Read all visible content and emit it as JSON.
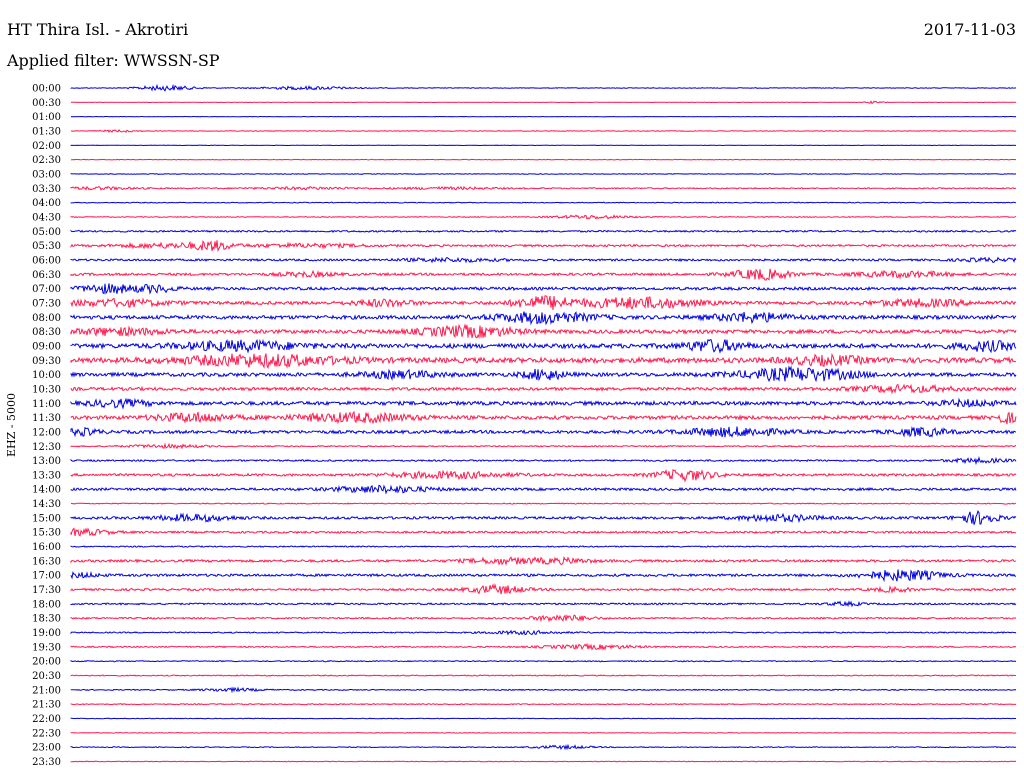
{
  "header": {
    "station": "HT Thira Isl. - Akrotiri",
    "date": "2017-11-03",
    "filter": "Applied filter: WWSSN-SP"
  },
  "chart_data": {
    "type": "line",
    "title": "HT Thira Isl. - Akrotiri",
    "subtitle": "Applied filter: WWSSN-SP",
    "ylabel": "EHZ - 5000",
    "colors": [
      "#0000dd",
      "#ff1a4d"
    ],
    "row_labels": [
      "00:00",
      "00:30",
      "01:00",
      "01:30",
      "02:00",
      "02:30",
      "03:00",
      "03:30",
      "04:00",
      "04:30",
      "05:00",
      "05:30",
      "06:00",
      "06:30",
      "07:00",
      "07:30",
      "08:00",
      "08:30",
      "09:00",
      "09:30",
      "10:00",
      "10:30",
      "11:00",
      "11:30",
      "12:00",
      "12:30",
      "13:00",
      "13:30",
      "14:00",
      "14:30",
      "15:00",
      "15:30",
      "16:00",
      "16:30",
      "17:00",
      "17:30",
      "18:00",
      "18:30",
      "19:00",
      "19:30",
      "20:00",
      "20:30",
      "21:00",
      "21:30",
      "22:00",
      "22:30",
      "23:00",
      "23:30"
    ],
    "rows": [
      {
        "noise": 0.3,
        "bursts": [
          [
            0.1,
            2.5,
            0.03
          ],
          [
            0.25,
            1.5,
            0.05
          ]
        ]
      },
      {
        "noise": 0.2,
        "bursts": [
          [
            0.85,
            1.0,
            0.01
          ]
        ]
      },
      {
        "noise": 0.2,
        "bursts": []
      },
      {
        "noise": 0.3,
        "bursts": [
          [
            0.05,
            1.0,
            0.02
          ]
        ]
      },
      {
        "noise": 0.2,
        "bursts": []
      },
      {
        "noise": 0.3,
        "bursts": []
      },
      {
        "noise": 0.3,
        "bursts": []
      },
      {
        "noise": 0.6,
        "bursts": [
          [
            0.03,
            1.2,
            0.04
          ],
          [
            0.25,
            1.0,
            0.05
          ],
          [
            0.4,
            1.0,
            0.05
          ]
        ]
      },
      {
        "noise": 0.4,
        "bursts": []
      },
      {
        "noise": 0.4,
        "bursts": [
          [
            0.55,
            1.8,
            0.04
          ]
        ]
      },
      {
        "noise": 0.8,
        "bursts": []
      },
      {
        "noise": 1.0,
        "bursts": [
          [
            0.1,
            2.0,
            0.05
          ],
          [
            0.15,
            4.0,
            0.02
          ],
          [
            0.25,
            1.5,
            0.06
          ]
        ]
      },
      {
        "noise": 1.0,
        "bursts": [
          [
            0.4,
            1.5,
            0.05
          ],
          [
            0.97,
            1.5,
            0.03
          ]
        ]
      },
      {
        "noise": 1.2,
        "bursts": [
          [
            0.25,
            2.0,
            0.03
          ],
          [
            0.73,
            5.0,
            0.03
          ],
          [
            0.88,
            2.5,
            0.05
          ]
        ]
      },
      {
        "noise": 1.4,
        "bursts": [
          [
            0.04,
            4.0,
            0.03
          ],
          [
            0.09,
            3.0,
            0.02
          ]
        ]
      },
      {
        "noise": 1.6,
        "bursts": [
          [
            0.05,
            3.0,
            0.05
          ],
          [
            0.33,
            3.0,
            0.03
          ],
          [
            0.5,
            6.0,
            0.03
          ],
          [
            0.6,
            5.0,
            0.06
          ],
          [
            0.9,
            3.0,
            0.05
          ]
        ]
      },
      {
        "noise": 1.8,
        "bursts": [
          [
            0.5,
            5.0,
            0.05
          ],
          [
            0.72,
            4.0,
            0.04
          ]
        ]
      },
      {
        "noise": 1.8,
        "bursts": [
          [
            0.05,
            3.0,
            0.05
          ],
          [
            0.42,
            5.0,
            0.05
          ]
        ]
      },
      {
        "noise": 2.2,
        "bursts": [
          [
            0.18,
            4.0,
            0.06
          ],
          [
            0.68,
            5.0,
            0.03
          ],
          [
            0.97,
            4.0,
            0.03
          ]
        ]
      },
      {
        "noise": 2.5,
        "bursts": [
          [
            0.2,
            5.0,
            0.08
          ],
          [
            0.8,
            3.5,
            0.04
          ]
        ]
      },
      {
        "noise": 1.8,
        "bursts": [
          [
            0.35,
            3.0,
            0.04
          ],
          [
            0.5,
            5.0,
            0.02
          ],
          [
            0.77,
            6.0,
            0.06
          ]
        ]
      },
      {
        "noise": 1.5,
        "bursts": [
          [
            0.88,
            3.0,
            0.05
          ]
        ]
      },
      {
        "noise": 1.8,
        "bursts": [
          [
            0.05,
            3.0,
            0.03
          ],
          [
            0.95,
            2.5,
            0.03
          ]
        ]
      },
      {
        "noise": 1.8,
        "bursts": [
          [
            0.13,
            4.0,
            0.04
          ],
          [
            0.3,
            4.0,
            0.06
          ],
          [
            0.99,
            5.0,
            0.01
          ]
        ]
      },
      {
        "noise": 1.5,
        "bursts": [
          [
            0.01,
            3.0,
            0.02
          ],
          [
            0.7,
            4.0,
            0.05
          ],
          [
            0.9,
            3.5,
            0.03
          ]
        ]
      },
      {
        "noise": 0.6,
        "bursts": [
          [
            0.1,
            1.5,
            0.04
          ]
        ]
      },
      {
        "noise": 0.8,
        "bursts": [
          [
            0.96,
            2.0,
            0.03
          ]
        ]
      },
      {
        "noise": 1.2,
        "bursts": [
          [
            0.4,
            3.0,
            0.06
          ],
          [
            0.65,
            5.0,
            0.03
          ]
        ]
      },
      {
        "noise": 1.2,
        "bursts": [
          [
            0.33,
            3.0,
            0.05
          ]
        ]
      },
      {
        "noise": 0.5,
        "bursts": []
      },
      {
        "noise": 1.2,
        "bursts": [
          [
            0.13,
            3.0,
            0.04
          ],
          [
            0.75,
            3.0,
            0.04
          ],
          [
            0.96,
            6.0,
            0.02
          ]
        ]
      },
      {
        "noise": 1.0,
        "bursts": [
          [
            0.01,
            3.0,
            0.03
          ]
        ]
      },
      {
        "noise": 0.6,
        "bursts": []
      },
      {
        "noise": 1.2,
        "bursts": [
          [
            0.46,
            2.5,
            0.04
          ],
          [
            0.52,
            2.0,
            0.03
          ]
        ]
      },
      {
        "noise": 1.2,
        "bursts": [
          [
            0.01,
            2.0,
            0.02
          ],
          [
            0.88,
            5.0,
            0.04
          ]
        ]
      },
      {
        "noise": 1.0,
        "bursts": [
          [
            0.45,
            4.0,
            0.03
          ],
          [
            0.87,
            2.0,
            0.02
          ]
        ]
      },
      {
        "noise": 0.8,
        "bursts": [
          [
            0.82,
            1.5,
            0.02
          ]
        ]
      },
      {
        "noise": 0.8,
        "bursts": [
          [
            0.52,
            3.0,
            0.03
          ]
        ]
      },
      {
        "noise": 0.6,
        "bursts": [
          [
            0.48,
            1.5,
            0.04
          ]
        ]
      },
      {
        "noise": 0.6,
        "bursts": [
          [
            0.55,
            2.0,
            0.05
          ]
        ]
      },
      {
        "noise": 0.5,
        "bursts": []
      },
      {
        "noise": 0.5,
        "bursts": []
      },
      {
        "noise": 0.5,
        "bursts": [
          [
            0.17,
            1.5,
            0.03
          ]
        ]
      },
      {
        "noise": 0.5,
        "bursts": []
      },
      {
        "noise": 0.3,
        "bursts": []
      },
      {
        "noise": 0.3,
        "bursts": []
      },
      {
        "noise": 0.4,
        "bursts": [
          [
            0.52,
            1.5,
            0.03
          ]
        ]
      },
      {
        "noise": 0.3,
        "bursts": []
      }
    ]
  }
}
